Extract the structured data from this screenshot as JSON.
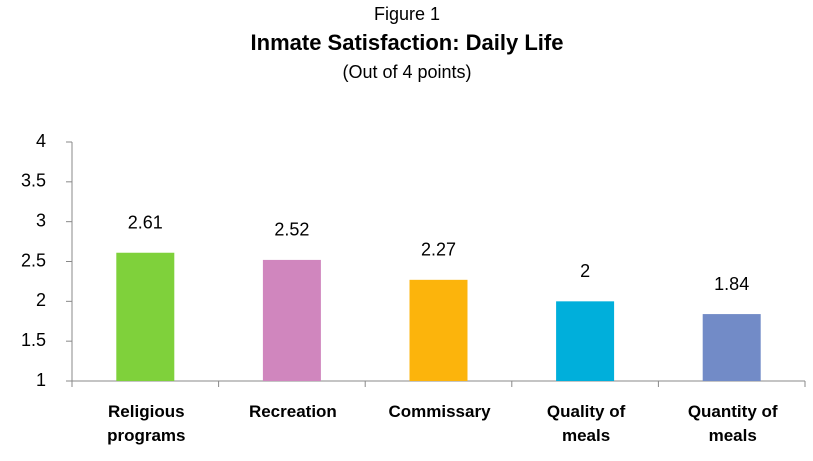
{
  "chart_data": {
    "type": "bar",
    "title": "Figure 1",
    "subtitle": "Inmate Satisfaction: Daily Life",
    "note": "(Out of 4 points)",
    "categories": [
      "Religious programs",
      "Recreation",
      "Commissary",
      "Quality of meals",
      "Quantity of meals"
    ],
    "values": [
      2.61,
      2.52,
      2.27,
      2,
      1.84
    ],
    "colors": [
      "#7fd13b",
      "#d086be",
      "#fcb40c",
      "#00afdb",
      "#728bc7"
    ],
    "ylim": [
      1,
      4
    ],
    "yticks": [
      1,
      1.5,
      2,
      2.5,
      3,
      3.5,
      4
    ],
    "grid": false
  }
}
